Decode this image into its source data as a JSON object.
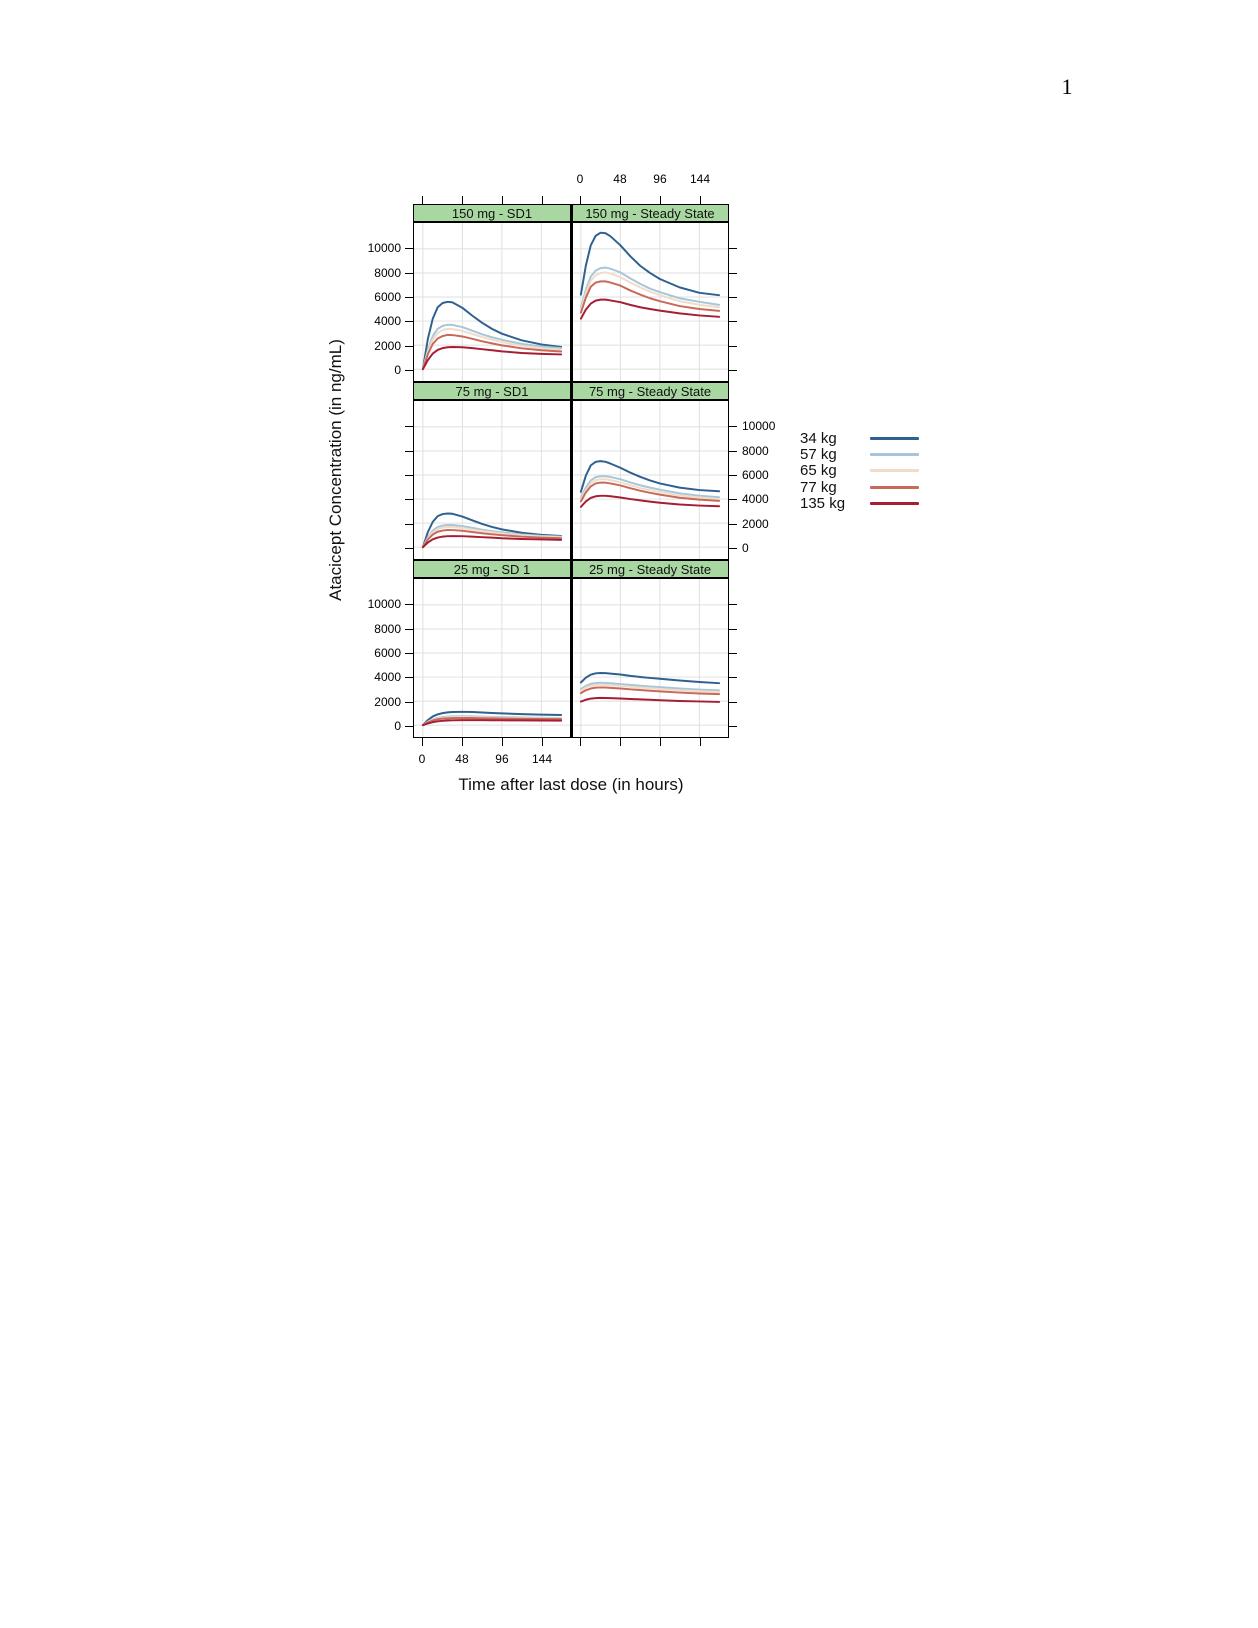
{
  "page": {
    "number": "1"
  },
  "chart_data": {
    "type": "line",
    "layout": "lattice 3 rows x 2 cols, shared axes",
    "xlabel": "Time after last dose (in hours)",
    "ylabel": "Atacicept Concentration (in ng/mL)",
    "x_ticks": [
      0,
      48,
      96,
      144
    ],
    "x_tick_labels": [
      "0",
      "48",
      "96",
      "144"
    ],
    "y_ticks": [
      0,
      2000,
      4000,
      6000,
      8000,
      10000
    ],
    "y_tick_labels": [
      "0",
      "2000",
      "4000",
      "6000",
      "8000",
      "10000"
    ],
    "xlim": [
      -11,
      180
    ],
    "ylim": [
      -1080,
      12150
    ],
    "grid": true,
    "grid_color": "#dfdfdf",
    "header_bg": "#a9d7a2",
    "x_hours": [
      0,
      6,
      12,
      18,
      24,
      30,
      36,
      48,
      60,
      72,
      84,
      96,
      120,
      144,
      168
    ],
    "series": [
      {
        "name": "34 kg",
        "color": "#2e618f"
      },
      {
        "name": "57 kg",
        "color": "#a7c6d9"
      },
      {
        "name": "65 kg",
        "color": "#f0ddc9"
      },
      {
        "name": "77 kg",
        "color": "#c9695a"
      },
      {
        "name": "135 kg",
        "color": "#a61e33"
      }
    ],
    "legend": {
      "position": "right-middle",
      "labels": [
        "34 kg",
        "57 kg",
        "65 kg",
        "77 kg",
        "135 kg"
      ]
    },
    "panels": [
      {
        "title": "150 mg - SD1",
        "row": 0,
        "col": 0,
        "values": [
          [
            0,
            2500,
            4200,
            5150,
            5500,
            5600,
            5550,
            5100,
            4450,
            3850,
            3350,
            2950,
            2400,
            2050,
            1850
          ],
          [
            0,
            1600,
            2750,
            3350,
            3600,
            3700,
            3680,
            3500,
            3200,
            2900,
            2650,
            2450,
            2100,
            1880,
            1750
          ],
          [
            0,
            1450,
            2450,
            3000,
            3250,
            3350,
            3330,
            3180,
            2920,
            2670,
            2450,
            2250,
            1950,
            1750,
            1620
          ],
          [
            0,
            1250,
            2100,
            2550,
            2750,
            2850,
            2830,
            2720,
            2520,
            2320,
            2140,
            1980,
            1730,
            1570,
            1470
          ],
          [
            0,
            750,
            1300,
            1600,
            1750,
            1820,
            1840,
            1820,
            1750,
            1660,
            1570,
            1480,
            1350,
            1270,
            1220
          ]
        ]
      },
      {
        "title": "150 mg - Steady State",
        "row": 0,
        "col": 1,
        "values": [
          [
            6200,
            8600,
            10300,
            11100,
            11350,
            11300,
            11050,
            10300,
            9400,
            8600,
            8000,
            7500,
            6800,
            6350,
            6150
          ],
          [
            5100,
            6600,
            7700,
            8200,
            8400,
            8450,
            8350,
            8050,
            7550,
            7100,
            6700,
            6400,
            5900,
            5600,
            5350
          ],
          [
            4900,
            6300,
            7350,
            7800,
            8000,
            8050,
            7950,
            7650,
            7200,
            6800,
            6450,
            6150,
            5650,
            5350,
            5150
          ],
          [
            4700,
            5950,
            6850,
            7200,
            7300,
            7300,
            7200,
            6950,
            6550,
            6200,
            5900,
            5650,
            5250,
            5000,
            4850
          ],
          [
            4200,
            4950,
            5450,
            5700,
            5780,
            5780,
            5720,
            5570,
            5350,
            5150,
            5000,
            4870,
            4640,
            4470,
            4350
          ]
        ]
      },
      {
        "title": "75 mg - SD1",
        "row": 1,
        "col": 0,
        "values": [
          [
            0,
            1250,
            2100,
            2580,
            2750,
            2800,
            2780,
            2550,
            2230,
            1930,
            1680,
            1480,
            1200,
            1030,
            930
          ],
          [
            0,
            800,
            1380,
            1680,
            1800,
            1850,
            1840,
            1750,
            1600,
            1450,
            1330,
            1230,
            1050,
            940,
            880
          ],
          [
            0,
            730,
            1230,
            1500,
            1630,
            1680,
            1670,
            1590,
            1460,
            1340,
            1230,
            1130,
            980,
            880,
            810
          ],
          [
            0,
            630,
            1050,
            1280,
            1380,
            1430,
            1420,
            1360,
            1260,
            1160,
            1070,
            990,
            870,
            790,
            740
          ],
          [
            0,
            380,
            650,
            800,
            880,
            910,
            920,
            910,
            880,
            830,
            790,
            740,
            680,
            640,
            610
          ]
        ]
      },
      {
        "title": "75 mg - Steady State",
        "row": 1,
        "col": 1,
        "values": [
          [
            4600,
            5950,
            6800,
            7100,
            7150,
            7100,
            6950,
            6600,
            6200,
            5850,
            5550,
            5300,
            4950,
            4750,
            4650
          ],
          [
            4100,
            4950,
            5550,
            5820,
            5900,
            5900,
            5830,
            5650,
            5380,
            5150,
            4950,
            4780,
            4480,
            4280,
            4150
          ],
          [
            3950,
            4750,
            5300,
            5570,
            5650,
            5650,
            5580,
            5400,
            5150,
            4930,
            4740,
            4580,
            4300,
            4120,
            4000
          ],
          [
            3800,
            4550,
            5050,
            5300,
            5370,
            5360,
            5300,
            5130,
            4900,
            4700,
            4520,
            4370,
            4110,
            3950,
            3850
          ],
          [
            3350,
            3800,
            4100,
            4230,
            4270,
            4270,
            4230,
            4130,
            4000,
            3890,
            3790,
            3700,
            3550,
            3460,
            3400
          ]
        ]
      },
      {
        "title": "25 mg - SD 1",
        "row": 2,
        "col": 0,
        "values": [
          [
            0,
            420,
            720,
            900,
            1000,
            1060,
            1090,
            1110,
            1090,
            1050,
            1010,
            980,
            920,
            880,
            850
          ],
          [
            0,
            280,
            490,
            610,
            670,
            710,
            730,
            740,
            730,
            710,
            690,
            670,
            640,
            615,
            595
          ],
          [
            0,
            250,
            440,
            550,
            610,
            640,
            660,
            670,
            660,
            645,
            630,
            615,
            585,
            565,
            550
          ],
          [
            0,
            220,
            390,
            490,
            540,
            570,
            585,
            595,
            590,
            575,
            565,
            550,
            530,
            515,
            500
          ],
          [
            0,
            140,
            250,
            320,
            365,
            390,
            405,
            420,
            420,
            415,
            410,
            405,
            395,
            385,
            378
          ]
        ]
      },
      {
        "title": "25 mg - Steady State",
        "row": 2,
        "col": 1,
        "values": [
          [
            3550,
            3950,
            4200,
            4310,
            4340,
            4330,
            4290,
            4210,
            4100,
            4010,
            3930,
            3860,
            3710,
            3590,
            3490
          ],
          [
            3000,
            3260,
            3430,
            3500,
            3520,
            3510,
            3480,
            3420,
            3350,
            3280,
            3220,
            3160,
            3050,
            2960,
            2890
          ],
          [
            2860,
            3110,
            3270,
            3340,
            3360,
            3350,
            3320,
            3260,
            3190,
            3120,
            3060,
            3010,
            2900,
            2820,
            2750
          ],
          [
            2660,
            2900,
            3050,
            3120,
            3140,
            3130,
            3100,
            3050,
            2980,
            2920,
            2860,
            2810,
            2710,
            2640,
            2580
          ],
          [
            1960,
            2110,
            2210,
            2250,
            2265,
            2260,
            2250,
            2220,
            2180,
            2140,
            2110,
            2070,
            2010,
            1970,
            1930
          ]
        ]
      }
    ]
  }
}
